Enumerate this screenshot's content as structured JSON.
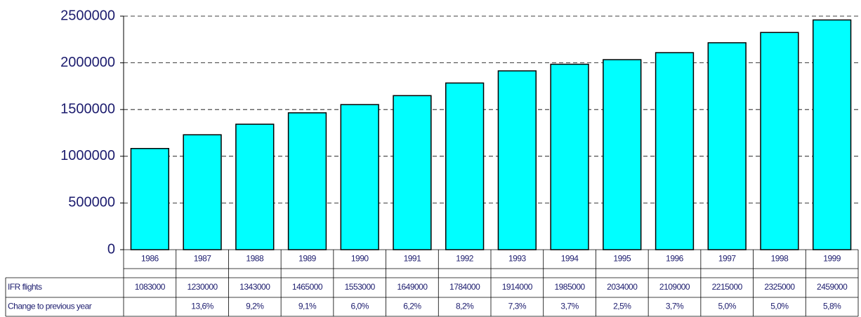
{
  "chart_data": {
    "type": "bar",
    "categories": [
      "1986",
      "1987",
      "1988",
      "1989",
      "1990",
      "1991",
      "1992",
      "1993",
      "1994",
      "1995",
      "1996",
      "1997",
      "1998",
      "1999"
    ],
    "series": [
      {
        "name": "IFR flights",
        "color": "#00ffff",
        "values": [
          1083000,
          1230000,
          1343000,
          1465000,
          1553000,
          1649000,
          1784000,
          1914000,
          1985000,
          2034000,
          2109000,
          2215000,
          2325000,
          2459000
        ]
      }
    ],
    "change": {
      "name": "Change to previous year",
      "values": [
        null,
        13.6,
        9.2,
        9.1,
        6.0,
        6.2,
        8.2,
        7.3,
        3.7,
        2.5,
        3.7,
        5.0,
        5.0,
        5.8
      ],
      "value_labels": [
        null,
        "13,6%",
        "9,2%",
        "9,1%",
        "6,0%",
        "6,2%",
        "8,2%",
        "7,3%",
        "3,7%",
        "2,5%",
        "3,7%",
        "5,0%",
        "5,0%",
        "5,8%"
      ]
    },
    "ylim": [
      0,
      2500000
    ],
    "yticks": [
      0,
      500000,
      1000000,
      1500000,
      2000000,
      2500000
    ],
    "grid": true
  }
}
